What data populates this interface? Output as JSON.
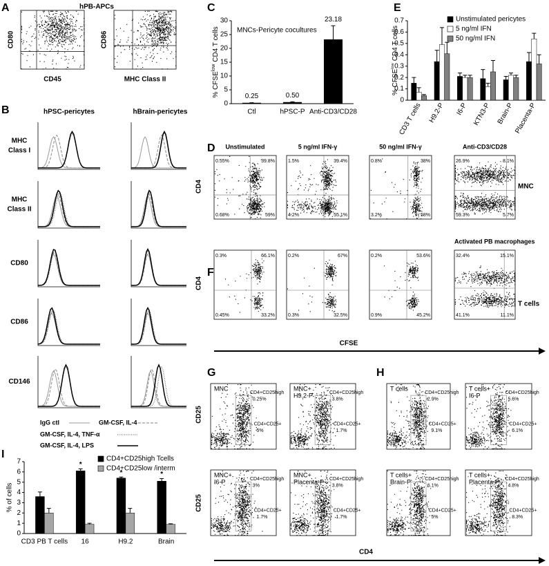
{
  "panels": {
    "A": {
      "letter": "A",
      "title": "hPB-APCs",
      "plots": [
        {
          "ylabel": "CD80",
          "xlabel": "CD45"
        },
        {
          "ylabel": "CD86",
          "xlabel": "MHC Class II"
        }
      ]
    },
    "B": {
      "letter": "B",
      "columns": [
        "hPSC-pericytes",
        "hBrain-pericytes"
      ],
      "rows": [
        [
          "MHC",
          "Class I"
        ],
        [
          "MHC",
          "Class II"
        ],
        [
          "CD80"
        ],
        [
          "CD86"
        ],
        [
          "CD146"
        ]
      ],
      "legend": [
        "IgG ctl",
        "GM-CSF, IL-4",
        "GM-CSF, IL-4, TNF-α",
        "GM-CSF, IL-4, LPS"
      ]
    },
    "C": {
      "letter": "C"
    },
    "E": {
      "letter": "E"
    },
    "I": {
      "letter": "I"
    },
    "D": {
      "letter": "D",
      "ylabel": "CD4",
      "side_label": "MNC",
      "plots": [
        {
          "title": "Unstimulated",
          "quadrants": [
            "0.55%",
            "39.8%",
            "0.68%",
            "59%"
          ]
        },
        {
          "title": "5 ng/ml IFN-γ",
          "quadrants": [
            "1.5%",
            "39.4%",
            "4.2%",
            "55.1%"
          ]
        },
        {
          "title": "50 ng/ml IFN-γ",
          "quadrants": [
            "0.8%",
            "38%",
            "3.2%",
            "58%"
          ]
        },
        {
          "title": "Anti-CD3/CD28",
          "quadrants": [
            "26.9%",
            "8.1%",
            "59.3%",
            "5.7%"
          ]
        }
      ]
    },
    "F": {
      "letter": "F",
      "ylabel": "CD4",
      "xlabel": "CFSE",
      "side_label": "T cells",
      "plots": [
        {
          "quadrants": [
            "0.3%",
            "66.1%",
            "0.45%",
            "33.2%"
          ]
        },
        {
          "quadrants": [
            "0.2%",
            "67%",
            "0.3%",
            "32.5%"
          ]
        },
        {
          "quadrants": [
            "0.2%",
            "53.6%",
            "0.9%",
            "45.2%"
          ]
        },
        {
          "title": "Activated PB  macrophages",
          "quadrants": [
            "32.4%",
            "15.1%",
            "41.1%",
            "11.1%"
          ]
        }
      ]
    },
    "G": {
      "letter": "G",
      "ylabel": "CD25",
      "xlabel": "CD4",
      "gates": [
        "CD4+CD25high",
        "CD4+CD25+"
      ],
      "plots": [
        {
          "title": [
            "MNC"
          ],
          "high": "0.25%",
          "low": "5%"
        },
        {
          "title": [
            "MNC+",
            "H9.2-P"
          ],
          "high": "3.8%",
          "low": "1.7%"
        },
        {
          "title": [
            "MNC+",
            "I6-P"
          ],
          "high": "3%",
          "low": "1.7%"
        },
        {
          "title": [
            "MNC+",
            "Placenta-P"
          ],
          "high": "3.8%",
          "low": "1.7%"
        }
      ]
    },
    "H": {
      "letter": "H",
      "plots": [
        {
          "title": [
            "T cells"
          ],
          "high": "2.9%",
          "low": "9.1%"
        },
        {
          "title": [
            "T cells+",
            "I6-P"
          ],
          "high": "5.6%",
          "low": "6.1%"
        },
        {
          "title": [
            "T cells+",
            "Brain-P"
          ],
          "high": "6.1%",
          "low": "5%"
        },
        {
          "title": [
            "T cells+",
            "Placenta-P"
          ],
          "high": "4.8%",
          "low": "8.3%"
        }
      ]
    }
  },
  "chart_data": [
    {
      "type": "bar",
      "annotation": "MNCs-Pericyte cocultures",
      "ylabel_parts": [
        "% CFSE",
        "low",
        "CD4 T cells"
      ],
      "categories": [
        "Ctl",
        "hPSC-P",
        "Anti-CD3/CD28"
      ],
      "values": [
        0.25,
        0.5,
        23.18
      ],
      "value_labels": [
        "0.25",
        "0.50",
        "23.18"
      ],
      "errors": [
        0.1,
        0.2,
        5
      ],
      "color": "#000000",
      "ylim": [
        0,
        30
      ],
      "yticks": [
        0,
        5,
        10,
        15,
        20,
        25,
        30
      ]
    },
    {
      "type": "bar",
      "ylabel_parts": [
        "% CFSE",
        "low",
        "CD4 T cells"
      ],
      "categories": [
        "CD3 T cells",
        "H9.2-P",
        "I6-P",
        "KTN3-P",
        "Brain-P",
        "Placenta-P"
      ],
      "series": [
        {
          "name": "Unstimulated pericytes",
          "color": "#000000",
          "values": [
            0.15,
            0.34,
            0.21,
            0.19,
            0.18,
            0.34
          ],
          "errors": [
            0.05,
            0.1,
            0.03,
            0.08,
            0.03,
            0.08
          ]
        },
        {
          "name": "5 ng/ml IFN",
          "color": "#ffffff",
          "values": [
            0.07,
            0.49,
            0.2,
            0.12,
            0.22,
            0.54
          ],
          "errors": [
            0.04,
            0.15,
            0.02,
            0.03,
            0.02,
            0.05
          ]
        },
        {
          "name": "50 ng/ml IFN",
          "color": "#808080",
          "values": [
            0.04,
            0.41,
            0.2,
            0.25,
            0.2,
            0.32
          ],
          "errors": [
            0.01,
            0.1,
            0.02,
            0.1,
            0.02,
            0.08
          ]
        }
      ],
      "ylim": [
        0,
        0.7
      ],
      "yticks": [
        0,
        0.1,
        0.2,
        0.3,
        0.4,
        0.5,
        0.6,
        0.7
      ],
      "legend": "upper right"
    },
    {
      "type": "bar",
      "ylabel": "% of cells",
      "categories": [
        "CD3 PB T cells",
        "16",
        "H9.2",
        "Brain"
      ],
      "series": [
        {
          "name": "CD4+CD25high Tcells",
          "color": "#000000",
          "values": [
            3.6,
            6.1,
            5.4,
            5.1
          ],
          "errors": [
            0.45,
            0.2,
            0.1,
            0.25
          ],
          "markers": [
            null,
            "*",
            "*",
            "*"
          ]
        },
        {
          "name": "CD4+CD25low /interm",
          "color": "#a6a6a6",
          "values": [
            2.0,
            0.9,
            2.0,
            0.9
          ],
          "errors": [
            0.45,
            0.1,
            0.45,
            0.05
          ]
        }
      ],
      "ylim": [
        0,
        7
      ],
      "yticks": [
        0,
        1,
        2,
        3,
        4,
        5,
        6,
        7
      ],
      "legend": "upper right"
    }
  ]
}
